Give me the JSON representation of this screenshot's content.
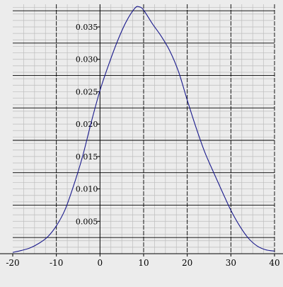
{
  "colors": {
    "background": "#ececec",
    "grid_major": "#000000",
    "grid_minor": "#bdbdbd",
    "curve": "#1a1a8c",
    "axis": "#000000",
    "text": "#000000"
  },
  "chart_data": {
    "type": "line",
    "title": "",
    "xlabel": "",
    "ylabel": "",
    "xlim": [
      -20,
      40
    ],
    "ylim": [
      0,
      0.0385
    ],
    "grid": true,
    "x_ticks": [
      -20,
      -10,
      0,
      10,
      20,
      30,
      40
    ],
    "x_tick_labels": [
      "-20",
      "-10",
      "0",
      "10",
      "20",
      "30",
      "40"
    ],
    "y_ticks": [
      0.005,
      0.01,
      0.015,
      0.02,
      0.025,
      0.03,
      0.035
    ],
    "y_tick_labels": [
      "0.005",
      "0.010",
      "0.015",
      "0.020",
      "0.025",
      "0.030",
      "0.035"
    ],
    "y_major_grid": [
      0.0025,
      0.0075,
      0.0125,
      0.0175,
      0.0225,
      0.0275,
      0.0325,
      0.0375
    ],
    "x_minor_step": 2.5,
    "y_minor_step": 0.001,
    "series": [
      {
        "x": [
          -20,
          -18,
          -16,
          -14,
          -12,
          -10,
          -8,
          -6,
          -4,
          -2,
          0,
          2,
          4,
          6,
          8,
          9,
          10,
          12,
          14,
          16,
          18,
          20,
          22,
          24,
          26,
          28,
          30,
          32,
          34,
          36,
          38,
          40
        ],
        "y": [
          0.0002,
          0.0005,
          0.0009,
          0.0016,
          0.0026,
          0.0043,
          0.0068,
          0.0106,
          0.015,
          0.0203,
          0.0252,
          0.0292,
          0.0328,
          0.0358,
          0.0379,
          0.0381,
          0.0376,
          0.0355,
          0.0336,
          0.0313,
          0.0281,
          0.0237,
          0.0195,
          0.0157,
          0.0126,
          0.0096,
          0.0067,
          0.0043,
          0.0024,
          0.0012,
          0.0006,
          0.0004
        ]
      }
    ]
  }
}
